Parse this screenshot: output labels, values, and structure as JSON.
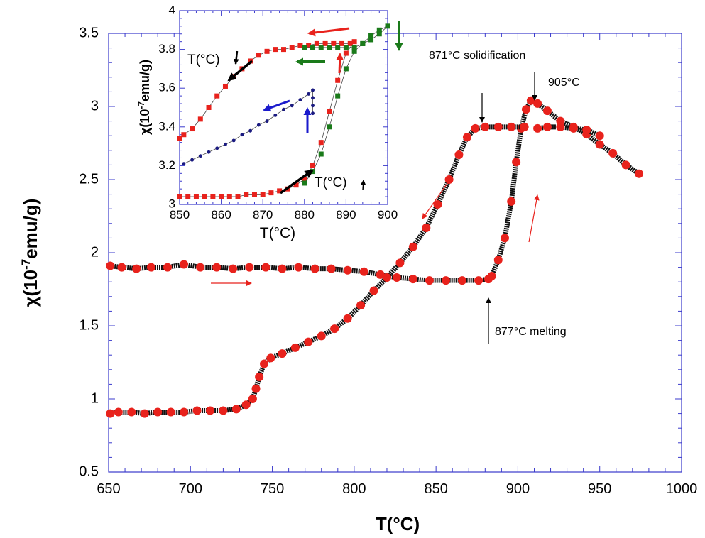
{
  "chart_data": [
    {
      "type": "scatter",
      "title": "",
      "xlabel": "T(°C)",
      "ylabel_main": "χ(10",
      "ylabel_sup": "-7",
      "ylabel_tail": "emu/g)",
      "xlim": [
        650,
        1000
      ],
      "ylim": [
        0.5,
        3.5
      ],
      "xticks": [
        "650",
        "700",
        "750",
        "800",
        "850",
        "900",
        "950",
        "1000"
      ],
      "yticks": [
        "0.5",
        "1",
        "1.5",
        "2",
        "2.5",
        "3",
        "3.5"
      ],
      "grid": false,
      "series": [
        {
          "color": "#e8221c",
          "marker": "circle",
          "x": [
            651,
            658,
            667,
            676,
            686,
            696,
            706,
            716,
            726,
            736,
            746,
            756,
            766,
            776,
            786,
            796,
            806,
            816,
            826,
            836,
            846,
            856,
            866,
            876,
            882
          ],
          "y": [
            1.91,
            1.9,
            1.89,
            1.9,
            1.9,
            1.92,
            1.9,
            1.9,
            1.89,
            1.9,
            1.9,
            1.89,
            1.9,
            1.89,
            1.89,
            1.88,
            1.87,
            1.85,
            1.83,
            1.82,
            1.81,
            1.81,
            1.81,
            1.81,
            1.82
          ]
        },
        {
          "color": "#e8221c",
          "marker": "circle",
          "x": [
            884,
            888,
            892,
            896,
            899,
            902,
            905,
            908,
            912,
            918,
            926,
            934,
            942,
            950,
            958,
            966,
            974
          ],
          "y": [
            1.84,
            1.95,
            2.1,
            2.35,
            2.62,
            2.85,
            2.98,
            3.04,
            3.02,
            2.97,
            2.9,
            2.86,
            2.81,
            2.74,
            2.68,
            2.6,
            2.54
          ]
        },
        {
          "color": "#e8221c",
          "marker": "circle",
          "x": [
            912,
            918,
            926,
            934,
            942,
            950
          ],
          "y": [
            2.85,
            2.86,
            2.86,
            2.85,
            2.84,
            2.8
          ]
        },
        {
          "color": "#e8221c",
          "marker": "circle",
          "x": [
            904,
            896,
            888,
            880,
            874,
            869,
            864,
            858,
            851,
            844,
            836,
            828,
            820,
            812,
            804,
            796,
            788,
            780,
            772,
            764,
            756,
            749,
            745,
            742,
            740,
            738,
            734,
            728,
            720,
            712,
            704,
            696,
            688,
            680,
            672,
            664,
            656,
            651
          ],
          "y": [
            2.86,
            2.86,
            2.86,
            2.86,
            2.85,
            2.79,
            2.67,
            2.5,
            2.33,
            2.17,
            2.04,
            1.93,
            1.83,
            1.74,
            1.64,
            1.55,
            1.48,
            1.43,
            1.39,
            1.35,
            1.31,
            1.28,
            1.24,
            1.15,
            1.07,
            1.0,
            0.96,
            0.93,
            0.92,
            0.92,
            0.92,
            0.91,
            0.91,
            0.91,
            0.9,
            0.91,
            0.91,
            0.9
          ]
        }
      ],
      "annotations": [
        {
          "text": "871°C solidification",
          "x": 871,
          "y": 3.38
        },
        {
          "text": "905°C",
          "x": 905,
          "y": 3.18
        },
        {
          "text": "877°C melting",
          "x": 877,
          "y": 1.47
        }
      ]
    },
    {
      "type": "scatter",
      "title": "",
      "xlabel": "T(°C)",
      "ylabel_main": "χ(10",
      "ylabel_sup": "-7",
      "ylabel_tail": "emu/g)",
      "xlim": [
        850,
        900
      ],
      "ylim": [
        3,
        4
      ],
      "xticks": [
        "850",
        "860",
        "870",
        "880",
        "890",
        "900"
      ],
      "yticks": [
        "3",
        "3.2",
        "3.4",
        "3.6",
        "3.8",
        "4"
      ],
      "grid": false,
      "series": [
        {
          "color": "#e8221c",
          "marker": "square",
          "x": [
            850,
            852,
            854,
            856,
            858,
            860,
            862,
            864,
            866,
            868,
            870,
            872,
            874,
            876,
            878,
            880,
            882,
            884,
            886,
            888,
            890,
            892
          ],
          "y": [
            3.04,
            3.04,
            3.04,
            3.04,
            3.04,
            3.04,
            3.04,
            3.04,
            3.05,
            3.05,
            3.05,
            3.06,
            3.07,
            3.08,
            3.1,
            3.13,
            3.2,
            3.32,
            3.48,
            3.64,
            3.78,
            3.84
          ]
        },
        {
          "color": "#e8221c",
          "marker": "square",
          "x": [
            891,
            889,
            887,
            885,
            883,
            881,
            879,
            877,
            875,
            873,
            871,
            869,
            867,
            865,
            863,
            861,
            859,
            857,
            855,
            853,
            851,
            850
          ],
          "y": [
            3.83,
            3.83,
            3.83,
            3.83,
            3.83,
            3.82,
            3.82,
            3.81,
            3.8,
            3.8,
            3.79,
            3.77,
            3.74,
            3.7,
            3.66,
            3.61,
            3.56,
            3.5,
            3.44,
            3.39,
            3.36,
            3.34
          ]
        },
        {
          "color": "#1a7a1a",
          "marker": "square",
          "x": [
            880,
            882,
            884,
            886,
            888,
            890,
            892,
            894,
            896,
            898,
            900,
            898,
            896,
            894,
            892,
            890,
            888,
            886,
            884,
            882,
            880
          ],
          "y": [
            3.11,
            3.17,
            3.26,
            3.4,
            3.56,
            3.7,
            3.79,
            3.83,
            3.87,
            3.9,
            3.92,
            3.88,
            3.85,
            3.83,
            3.81,
            3.81,
            3.81,
            3.81,
            3.81,
            3.81,
            3.81
          ]
        },
        {
          "color": "#1a1a80",
          "marker": "circle",
          "x": [
            851,
            853,
            855,
            857,
            859,
            861,
            863,
            865,
            867,
            869,
            871,
            873,
            875,
            877,
            879,
            881,
            882,
            882,
            882,
            882
          ],
          "y": [
            3.21,
            3.23,
            3.25,
            3.27,
            3.29,
            3.31,
            3.33,
            3.36,
            3.38,
            3.41,
            3.43,
            3.46,
            3.49,
            3.51,
            3.54,
            3.57,
            3.59,
            3.55,
            3.51,
            3.47
          ]
        }
      ],
      "annotations": [
        {
          "text": "T(°C)",
          "x": 855,
          "y": 3.77
        },
        {
          "text": "T(°C)",
          "x": 885,
          "y": 3.06
        }
      ]
    }
  ]
}
